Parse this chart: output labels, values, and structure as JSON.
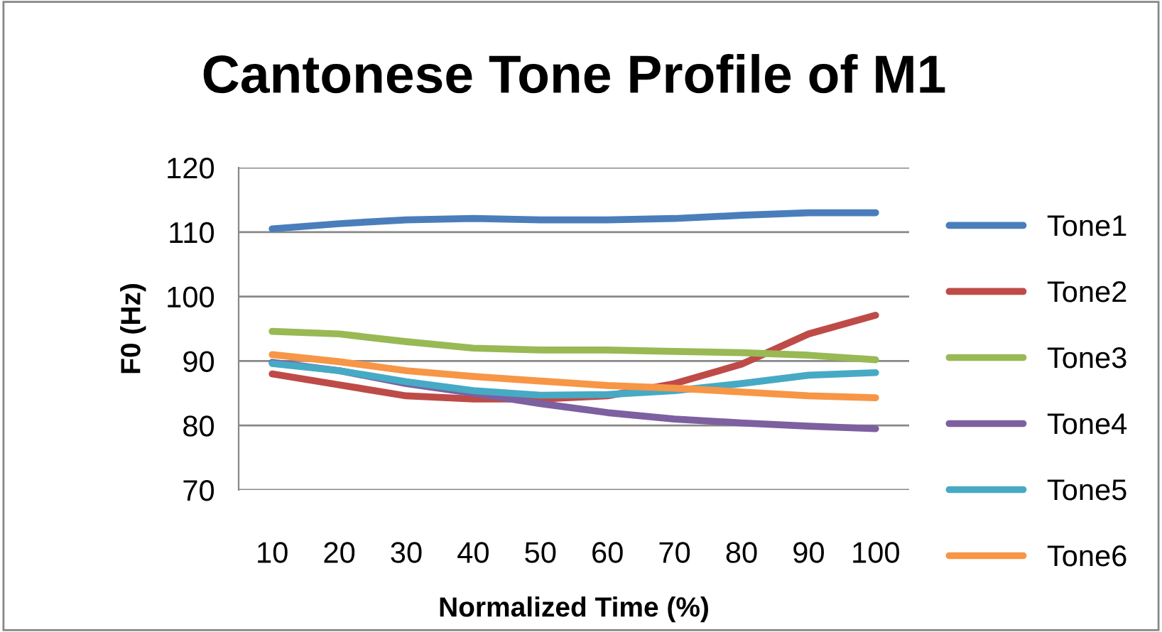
{
  "chart_data": {
    "type": "line",
    "title": "Cantonese Tone Profile of M1",
    "xlabel": "Normalized Time (%)",
    "ylabel": "F0 (Hz)",
    "categories": [
      "10",
      "20",
      "30",
      "40",
      "50",
      "60",
      "70",
      "80",
      "90",
      "100"
    ],
    "series": [
      {
        "name": "Tone1",
        "color": "#4a7ebb",
        "values": [
          110.5,
          111.3,
          111.9,
          112.1,
          111.9,
          111.9,
          112.1,
          112.6,
          113,
          113
        ]
      },
      {
        "name": "Tone2",
        "color": "#be4b48",
        "values": [
          88,
          86.3,
          84.6,
          84.1,
          84.1,
          84.6,
          86.5,
          89.5,
          94.2,
          97.1
        ]
      },
      {
        "name": "Tone3",
        "color": "#98b954",
        "values": [
          94.6,
          94.2,
          93,
          92,
          91.7,
          91.7,
          91.5,
          91.3,
          90.9,
          90.2
        ]
      },
      {
        "name": "Tone4",
        "color": "#7d60a0",
        "values": [
          89.8,
          88.5,
          86.5,
          85,
          83.4,
          82,
          81,
          80.4,
          79.9,
          79.5
        ]
      },
      {
        "name": "Tone5",
        "color": "#46aac5",
        "values": [
          89.6,
          88.5,
          86.8,
          85.4,
          84.7,
          84.8,
          85.4,
          86.5,
          87.8,
          88.2
        ]
      },
      {
        "name": "Tone6",
        "color": "#f79646",
        "values": [
          91,
          89.9,
          88.5,
          87.6,
          86.9,
          86.2,
          85.8,
          85.2,
          84.6,
          84.3
        ]
      }
    ],
    "ylim": [
      70,
      120
    ],
    "yticks": [
      70,
      80,
      90,
      100,
      110,
      120
    ],
    "grid": "y",
    "legend": "right",
    "marker": "none",
    "line_style": "solid"
  }
}
